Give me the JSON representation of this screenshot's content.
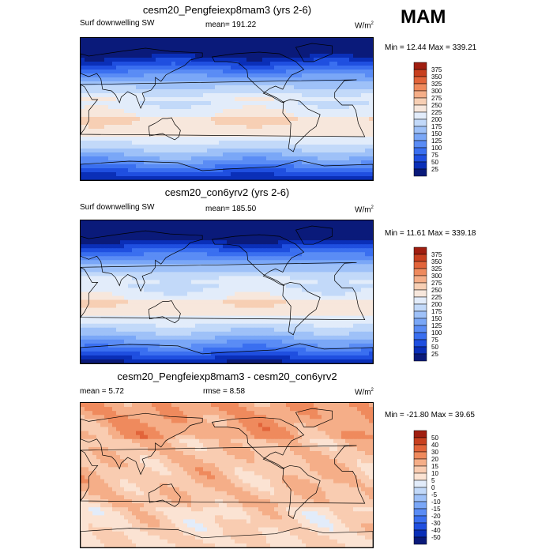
{
  "season_label": "MAM",
  "colors": {
    "sw_scale": [
      "#0a1a7a",
      "#0a2fb8",
      "#1f4fe0",
      "#3a6ff0",
      "#5a8cf5",
      "#7aa7f7",
      "#9ec1f8",
      "#c2d9f9",
      "#e2ecfa",
      "#f7e7dc",
      "#f7cfb4",
      "#f5ae88",
      "#ef8a5d",
      "#e2643a",
      "#c8401f",
      "#a01e10"
    ],
    "diff_scale": [
      "#0a1a7a",
      "#0a2fb8",
      "#1f4fe0",
      "#3a6ff0",
      "#5a8cf5",
      "#7aa7f7",
      "#9ec1f8",
      "#c2d9f9",
      "#e2ecfa",
      "#fbe3d3",
      "#f9ccb1",
      "#f5ae88",
      "#ef8a5d",
      "#e2643a",
      "#c8401f",
      "#a01e10"
    ]
  },
  "chart_data": [
    {
      "type": "heatmap",
      "title": "cesm20_Pengfeiexp8mam3 (yrs 2-6)",
      "left_label": "Surf downwelling SW",
      "center_label": "mean= 191.22",
      "units": "W/m",
      "units_sup": "2",
      "minmax": "Min =  12.44 Max = 339.21",
      "colorbar_levels": [
        "375",
        "350",
        "325",
        "300",
        "275",
        "250",
        "225",
        "200",
        "175",
        "150",
        "125",
        "100",
        "75",
        "50",
        "25"
      ]
    },
    {
      "type": "heatmap",
      "title": "cesm20_con6yrv2 (yrs 2-6)",
      "left_label": "Surf downwelling SW",
      "center_label": "mean= 185.50",
      "units": "W/m",
      "units_sup": "2",
      "minmax": "Min =  11.61 Max = 339.18",
      "colorbar_levels": [
        "375",
        "350",
        "325",
        "300",
        "275",
        "250",
        "225",
        "200",
        "175",
        "150",
        "125",
        "100",
        "75",
        "50",
        "25"
      ]
    },
    {
      "type": "heatmap",
      "title": "cesm20_Pengfeiexp8mam3 - cesm20_con6yrv2",
      "left_label": "mean =   5.72",
      "center_label": "rmse =   8.58",
      "units": "W/m",
      "units_sup": "2",
      "minmax": "Min = -21.80 Max =  39.65",
      "colorbar_levels": [
        "50",
        "40",
        "30",
        "20",
        "15",
        "10",
        "5",
        "0",
        "-5",
        "-10",
        "-15",
        "-20",
        "-30",
        "-40",
        "-50"
      ]
    }
  ]
}
